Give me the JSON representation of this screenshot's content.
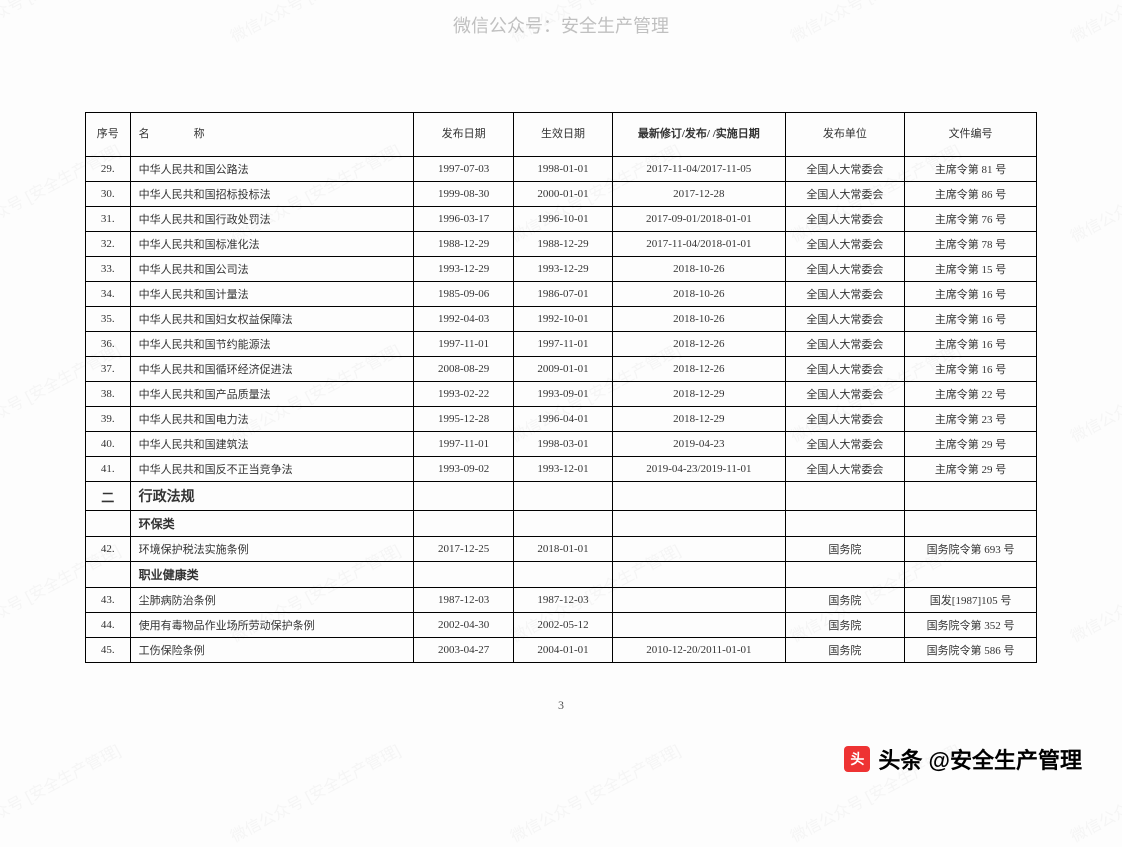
{
  "header_watermark": "微信公众号：安全生产管理",
  "diagonal_watermark": "微信公众号 [安全生产管理]",
  "page_number": "3",
  "footer": {
    "icon_label": "头",
    "text": "头条 @安全生产管理"
  },
  "table": {
    "columns": [
      {
        "key": "seq",
        "label": "序号"
      },
      {
        "key": "name",
        "label": "名　　　　称"
      },
      {
        "key": "pub",
        "label": "发布日期"
      },
      {
        "key": "eff",
        "label": "生效日期"
      },
      {
        "key": "rev",
        "label": "最新修订/发布/ /实施日期",
        "bold": true
      },
      {
        "key": "unit",
        "label": "发布单位"
      },
      {
        "key": "doc",
        "label": "文件编号"
      }
    ],
    "rows": [
      {
        "type": "data",
        "seq": "29.",
        "name": "中华人民共和国公路法",
        "pub": "1997-07-03",
        "eff": "1998-01-01",
        "rev": "2017-11-04/2017-11-05",
        "unit": "全国人大常委会",
        "doc": "主席令第 81 号"
      },
      {
        "type": "data",
        "seq": "30.",
        "name": "中华人民共和国招标投标法",
        "pub": "1999-08-30",
        "eff": "2000-01-01",
        "rev": "2017-12-28",
        "unit": "全国人大常委会",
        "doc": "主席令第 86 号"
      },
      {
        "type": "data",
        "seq": "31.",
        "name": "中华人民共和国行政处罚法",
        "pub": "1996-03-17",
        "eff": "1996-10-01",
        "rev": "2017-09-01/2018-01-01",
        "unit": "全国人大常委会",
        "doc": "主席令第 76 号"
      },
      {
        "type": "data",
        "seq": "32.",
        "name": "中华人民共和国标准化法",
        "pub": "1988-12-29",
        "eff": "1988-12-29",
        "rev": "2017-11-04/2018-01-01",
        "unit": "全国人大常委会",
        "doc": "主席令第 78 号"
      },
      {
        "type": "data",
        "seq": "33.",
        "name": "中华人民共和国公司法",
        "pub": "1993-12-29",
        "eff": "1993-12-29",
        "rev": "2018-10-26",
        "unit": "全国人大常委会",
        "doc": "主席令第 15 号"
      },
      {
        "type": "data",
        "seq": "34.",
        "name": "中华人民共和国计量法",
        "pub": "1985-09-06",
        "eff": "1986-07-01",
        "rev": "2018-10-26",
        "unit": "全国人大常委会",
        "doc": "主席令第 16 号"
      },
      {
        "type": "data",
        "seq": "35.",
        "name": "中华人民共和国妇女权益保障法",
        "pub": "1992-04-03",
        "eff": "1992-10-01",
        "rev": "2018-10-26",
        "unit": "全国人大常委会",
        "doc": "主席令第 16 号"
      },
      {
        "type": "data",
        "seq": "36.",
        "name": "中华人民共和国节约能源法",
        "pub": "1997-11-01",
        "eff": "1997-11-01",
        "rev": "2018-12-26",
        "unit": "全国人大常委会",
        "doc": "主席令第 16 号"
      },
      {
        "type": "data",
        "seq": "37.",
        "name": "中华人民共和国循环经济促进法",
        "pub": "2008-08-29",
        "eff": "2009-01-01",
        "rev": "2018-12-26",
        "unit": "全国人大常委会",
        "doc": "主席令第 16 号"
      },
      {
        "type": "data",
        "seq": "38.",
        "name": "中华人民共和国产品质量法",
        "pub": "1993-02-22",
        "eff": "1993-09-01",
        "rev": "2018-12-29",
        "unit": "全国人大常委会",
        "doc": "主席令第 22 号"
      },
      {
        "type": "data",
        "seq": "39.",
        "name": "中华人民共和国电力法",
        "pub": "1995-12-28",
        "eff": "1996-04-01",
        "rev": "2018-12-29",
        "unit": "全国人大常委会",
        "doc": "主席令第 23 号"
      },
      {
        "type": "data",
        "seq": "40.",
        "name": "中华人民共和国建筑法",
        "pub": "1997-11-01",
        "eff": "1998-03-01",
        "rev": "2019-04-23",
        "unit": "全国人大常委会",
        "doc": "主席令第 29 号"
      },
      {
        "type": "data",
        "seq": "41.",
        "name": "中华人民共和国反不正当竞争法",
        "pub": "1993-09-02",
        "eff": "1993-12-01",
        "rev": "2019-04-23/2019-11-01",
        "unit": "全国人大常委会",
        "doc": "主席令第 29 号"
      },
      {
        "type": "section",
        "seq": "二",
        "name": "行政法规"
      },
      {
        "type": "subcat",
        "name": "环保类"
      },
      {
        "type": "data",
        "seq": "42.",
        "name": "环境保护税法实施条例",
        "pub": "2017-12-25",
        "eff": "2018-01-01",
        "rev": "",
        "unit": "国务院",
        "doc": "国务院令第 693 号"
      },
      {
        "type": "subcat",
        "name": "职业健康类"
      },
      {
        "type": "data",
        "seq": "43.",
        "name": "尘肺病防治条例",
        "pub": "1987-12-03",
        "eff": "1987-12-03",
        "rev": "",
        "unit": "国务院",
        "doc": "国发[1987]105 号"
      },
      {
        "type": "data",
        "seq": "44.",
        "name": "使用有毒物品作业场所劳动保护条例",
        "pub": "2002-04-30",
        "eff": "2002-05-12",
        "rev": "",
        "unit": "国务院",
        "doc": "国务院令第 352 号"
      },
      {
        "type": "data",
        "seq": "45.",
        "name": "工伤保险条例",
        "pub": "2003-04-27",
        "eff": "2004-01-01",
        "rev": "2010-12-20/2011-01-01",
        "unit": "国务院",
        "doc": "国务院令第 586 号"
      }
    ]
  }
}
